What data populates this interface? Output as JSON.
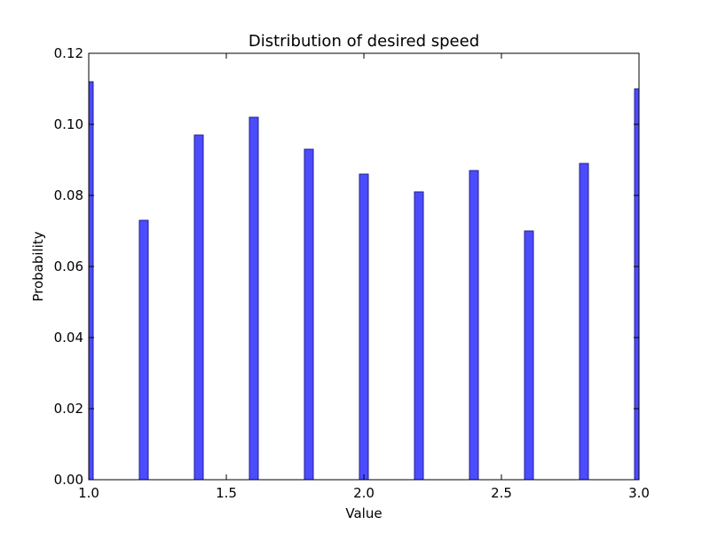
{
  "chart_data": {
    "type": "bar",
    "title": "Distribution of desired speed",
    "xlabel": "Value",
    "ylabel": "Probability",
    "xlim": [
      1.0,
      3.0
    ],
    "ylim": [
      0.0,
      0.12
    ],
    "xticks": [
      "1.0",
      "1.5",
      "2.0",
      "2.5",
      "3.0"
    ],
    "yticks": [
      "0.00",
      "0.02",
      "0.04",
      "0.06",
      "0.08",
      "0.10",
      "0.12"
    ],
    "x": [
      1.0,
      1.2,
      1.4,
      1.6,
      1.8,
      2.0,
      2.2,
      2.4,
      2.6,
      2.8,
      3.0
    ],
    "values": [
      0.112,
      0.073,
      0.097,
      0.102,
      0.093,
      0.086,
      0.081,
      0.087,
      0.07,
      0.089,
      0.11
    ],
    "grid": false,
    "bar_color": "#4c4cff",
    "bar_edge_color": "#1f1f8f"
  }
}
